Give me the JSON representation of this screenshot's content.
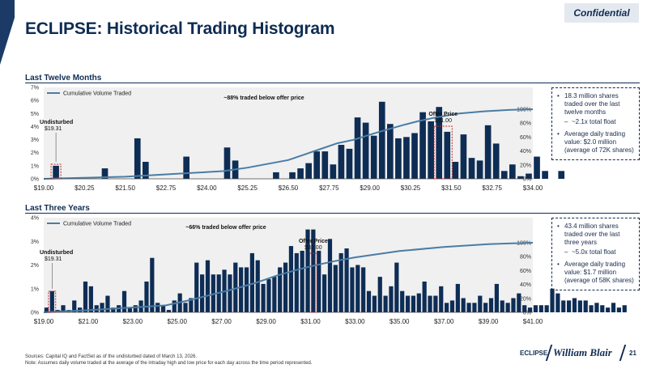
{
  "header": {
    "confidential": "Confidential",
    "title": "ECLIPSE: Historical Trading Histogram"
  },
  "colors": {
    "bar": "#0e2d55",
    "line": "#4a7ca5",
    "accent": "#0f2c52",
    "highlight": "#c0282d",
    "plot_bg": "#f0f0f0"
  },
  "icons": {
    "corner": "corner-triangle-icon",
    "legend": "line-swatch-icon"
  },
  "chart_data": [
    {
      "type": "bar",
      "section_title": "Last Twelve Months",
      "title": "",
      "xlabel": "",
      "ylabel": "",
      "legend": "Cumulative Volume Traded",
      "annotation": "~88% traded below offer price",
      "undisturbed_label": "Undisturbed",
      "undisturbed_price": "$19.31",
      "undisturbed_value": 19.31,
      "offer_label": "Offer Price",
      "offer_price": "$31.00",
      "offer_value": 31.0,
      "x_range": [
        19.0,
        34.0
      ],
      "bin_width": 0.25,
      "x_ticks": [
        19.0,
        20.25,
        21.5,
        22.75,
        24.0,
        25.25,
        26.5,
        27.75,
        29.0,
        30.25,
        31.5,
        32.75,
        34.0
      ],
      "x_tick_labels": [
        "$19.00",
        "$20.25",
        "$21.50",
        "$22.75",
        "$24.00",
        "$25.25",
        "$26.50",
        "$27.75",
        "$29.00",
        "$30.25",
        "$31.50",
        "$32.75",
        "$34.00"
      ],
      "ylim": [
        0,
        7
      ],
      "y_ticks": [
        "0%",
        "1%",
        "2%",
        "3%",
        "4%",
        "5%",
        "6%",
        "7%"
      ],
      "y2lim": [
        0,
        100
      ],
      "y2_ticks": [
        "0%",
        "20%",
        "40%",
        "60%",
        "80%",
        "100%"
      ],
      "values": [
        0.0,
        1.0,
        0.0,
        0.0,
        0.0,
        0.0,
        0.0,
        0.8,
        0.0,
        0.0,
        0.0,
        3.1,
        1.3,
        0.0,
        0.0,
        0.0,
        0.0,
        1.7,
        0.0,
        0.0,
        0.0,
        0.0,
        2.4,
        1.4,
        0.0,
        0.0,
        0.0,
        0.0,
        0.5,
        0.0,
        0.5,
        0.8,
        1.2,
        2.1,
        2.1,
        1.1,
        2.6,
        2.3,
        4.7,
        4.3,
        3.3,
        5.9,
        4.2,
        3.1,
        3.2,
        3.5,
        5.1,
        4.4,
        5.5,
        3.6,
        1.3,
        3.4,
        1.6,
        1.4,
        4.1,
        2.7,
        0.6,
        1.1,
        0.2,
        0.4,
        1.7,
        0.6,
        0.0,
        0.6
      ],
      "cumulative": {
        "x": [
          19.0,
          21.5,
          23.75,
          24.5,
          25.25,
          26.5,
          27.5,
          28.0,
          28.5,
          29.25,
          30.0,
          30.5,
          31.0,
          31.75,
          32.5,
          33.25,
          34.0
        ],
        "y": [
          0,
          3,
          9,
          11,
          16,
          27,
          43,
          51,
          56,
          67,
          77,
          83,
          88,
          94,
          97,
          99,
          100
        ]
      }
    },
    {
      "type": "bar",
      "section_title": "Last Three Years",
      "title": "",
      "xlabel": "",
      "ylabel": "",
      "legend": "Cumulative Volume Traded",
      "annotation": "~66% traded below offer price",
      "undisturbed_label": "Undisturbed",
      "undisturbed_price": "$19.31",
      "undisturbed_value": 19.31,
      "offer_label": "Offer Price",
      "offer_price": "$31.00",
      "offer_value": 31.0,
      "x_range": [
        19.0,
        41.0
      ],
      "bin_width": 0.25,
      "x_ticks": [
        19.0,
        21.0,
        23.0,
        25.0,
        27.0,
        29.0,
        31.0,
        33.0,
        35.0,
        37.0,
        39.0,
        41.0
      ],
      "x_tick_labels": [
        "$19.00",
        "$21.00",
        "$23.00",
        "$25.00",
        "$27.00",
        "$29.00",
        "$31.00",
        "$33.00",
        "$35.00",
        "$37.00",
        "$39.00",
        "$41.00"
      ],
      "ylim": [
        0,
        4
      ],
      "y_ticks": [
        "0%",
        "1%",
        "2%",
        "3%",
        "4%"
      ],
      "y2lim": [
        0,
        100
      ],
      "y2_ticks": [
        "0%",
        "20%",
        "40%",
        "60%",
        "80%",
        "100%"
      ],
      "values": [
        0.2,
        0.9,
        0.1,
        0.3,
        0.1,
        0.5,
        0.2,
        1.3,
        1.1,
        0.3,
        0.4,
        0.7,
        0.2,
        0.3,
        0.9,
        0.2,
        0.3,
        0.5,
        1.3,
        2.3,
        0.4,
        0.3,
        0.1,
        0.5,
        0.8,
        0.4,
        0.6,
        2.1,
        1.6,
        2.2,
        1.6,
        1.6,
        1.8,
        1.6,
        2.1,
        1.9,
        1.9,
        2.5,
        2.2,
        1.2,
        1.4,
        1.5,
        1.9,
        2.1,
        2.8,
        2.5,
        2.6,
        3.5,
        3.5,
        2.6,
        1.6,
        3.1,
        2.0,
        2.5,
        2.7,
        1.9,
        2.0,
        1.9,
        0.9,
        0.7,
        1.5,
        0.7,
        1.1,
        2.1,
        0.9,
        0.7,
        0.7,
        0.8,
        1.3,
        0.7,
        0.7,
        1.1,
        0.4,
        0.5,
        1.2,
        0.6,
        0.4,
        0.4,
        0.7,
        0.4,
        0.6,
        1.2,
        0.5,
        0.4,
        0.6,
        0.8,
        0.3,
        0.2,
        0.3,
        0.3,
        0.3,
        1.0,
        0.8,
        0.5,
        0.5,
        0.6,
        0.5,
        0.5,
        0.3,
        0.4,
        0.3,
        0.2,
        0.4,
        0.2,
        0.3
      ],
      "cumulative": {
        "x": [
          19.0,
          21.0,
          23.0,
          24.5,
          25.5,
          26.5,
          27.5,
          28.5,
          29.5,
          30.5,
          31.0,
          32.0,
          33.0,
          35.0,
          37.0,
          39.0,
          41.0
        ],
        "y": [
          0,
          3,
          7,
          10,
          17,
          25,
          33,
          42,
          53,
          62,
          66,
          73,
          79,
          88,
          94,
          98,
          100
        ]
      }
    }
  ],
  "callouts": [
    {
      "main": "18.3 million shares traded over the last twelve months",
      "sub": "~2.1x total float",
      "avg": "Average daily trading value: $2.0 million (average of 72K shares)"
    },
    {
      "main": "43.4 million shares traded over the last three years",
      "sub": "~5.0x total float",
      "avg": "Average daily trading value: $1.7 million (average of 58K shares)"
    }
  ],
  "footer": {
    "sources": "Sources: Capital IQ and FactSet as of the undisturbed dated of March 13, 2026.",
    "note": "Note: Assumes daily volume traded at the average of the intraday high and low price for each day across the time period represented.",
    "brand": "ECLIPSE",
    "logo": "William Blair",
    "page": "21"
  }
}
